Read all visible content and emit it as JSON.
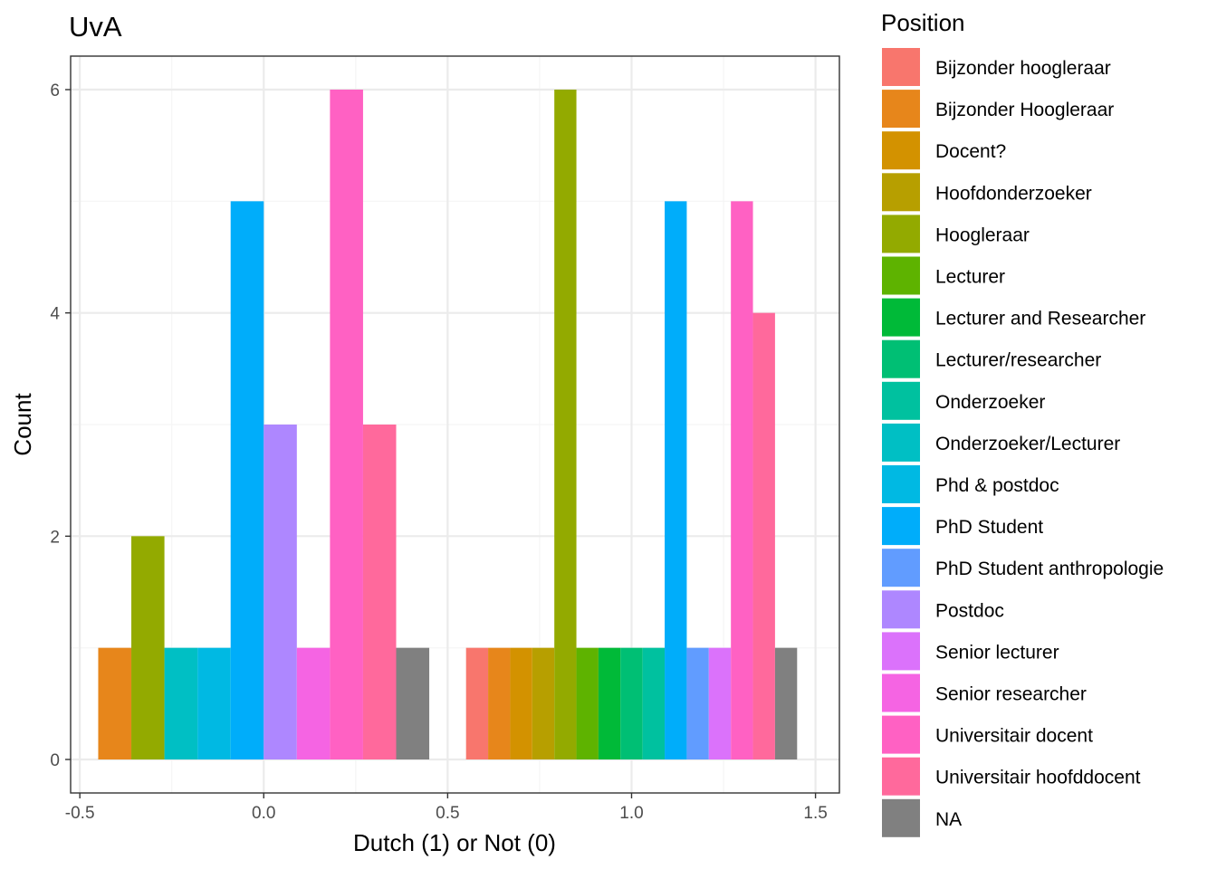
{
  "chart_data": {
    "type": "bar",
    "title": "UvA",
    "xlabel": "Dutch (1) or Not (0)",
    "ylabel": "Count",
    "xlim": [
      -0.525,
      1.565
    ],
    "ylim": [
      -0.3,
      6.3
    ],
    "x_ticks": [
      -0.5,
      0.0,
      0.5,
      1.0,
      1.5
    ],
    "x_tick_labels": [
      "-0.5",
      "0.0",
      "0.5",
      "1.0",
      "1.5"
    ],
    "y_ticks": [
      0,
      2,
      4,
      6
    ],
    "y_tick_labels": [
      "0",
      "2",
      "4",
      "6"
    ],
    "grid": true,
    "legend_position": "right",
    "legend_title": "Position",
    "series": [
      {
        "name": "Bijzonder hoogleraar",
        "color": "#F8766D",
        "values": [
          {
            "x": 0,
            "y": 0
          },
          {
            "x": 1,
            "y": 1
          }
        ]
      },
      {
        "name": "Bijzonder Hoogleraar",
        "color": "#E7861B",
        "values": [
          {
            "x": 0,
            "y": 1
          },
          {
            "x": 1,
            "y": 1
          }
        ]
      },
      {
        "name": "Docent?",
        "color": "#D39200",
        "values": [
          {
            "x": 0,
            "y": 0
          },
          {
            "x": 1,
            "y": 1
          }
        ]
      },
      {
        "name": "Hoofdonderzoeker",
        "color": "#B79F00",
        "values": [
          {
            "x": 0,
            "y": 0
          },
          {
            "x": 1,
            "y": 1
          }
        ]
      },
      {
        "name": "Hoogleraar",
        "color": "#93AA00",
        "values": [
          {
            "x": 0,
            "y": 2
          },
          {
            "x": 1,
            "y": 6
          }
        ]
      },
      {
        "name": "Lecturer",
        "color": "#5EB300",
        "values": [
          {
            "x": 0,
            "y": 0
          },
          {
            "x": 1,
            "y": 1
          }
        ]
      },
      {
        "name": "Lecturer and Researcher",
        "color": "#00BA38",
        "values": [
          {
            "x": 0,
            "y": 0
          },
          {
            "x": 1,
            "y": 1
          }
        ]
      },
      {
        "name": "Lecturer/researcher",
        "color": "#00BF74",
        "values": [
          {
            "x": 0,
            "y": 0
          },
          {
            "x": 1,
            "y": 1
          }
        ]
      },
      {
        "name": "Onderzoeker",
        "color": "#00C19F",
        "values": [
          {
            "x": 0,
            "y": 0
          },
          {
            "x": 1,
            "y": 1
          }
        ]
      },
      {
        "name": "Onderzoeker/Lecturer",
        "color": "#00BFC4",
        "values": [
          {
            "x": 0,
            "y": 1
          },
          {
            "x": 1,
            "y": 0
          }
        ]
      },
      {
        "name": "Phd & postdoc",
        "color": "#00B9E3",
        "values": [
          {
            "x": 0,
            "y": 1
          },
          {
            "x": 1,
            "y": 0
          }
        ]
      },
      {
        "name": "PhD Student",
        "color": "#00ADFA",
        "values": [
          {
            "x": 0,
            "y": 5
          },
          {
            "x": 1,
            "y": 5
          }
        ]
      },
      {
        "name": "PhD Student anthropologie",
        "color": "#619CFF",
        "values": [
          {
            "x": 0,
            "y": 0
          },
          {
            "x": 1,
            "y": 1
          }
        ]
      },
      {
        "name": "Postdoc",
        "color": "#AE87FF",
        "values": [
          {
            "x": 0,
            "y": 3
          },
          {
            "x": 1,
            "y": 0
          }
        ]
      },
      {
        "name": "Senior lecturer",
        "color": "#DB72FB",
        "values": [
          {
            "x": 0,
            "y": 0
          },
          {
            "x": 1,
            "y": 1
          }
        ]
      },
      {
        "name": "Senior researcher",
        "color": "#F564E3",
        "values": [
          {
            "x": 0,
            "y": 1
          },
          {
            "x": 1,
            "y": 0
          }
        ]
      },
      {
        "name": "Universitair docent",
        "color": "#FF61C3",
        "values": [
          {
            "x": 0,
            "y": 6
          },
          {
            "x": 1,
            "y": 5
          }
        ]
      },
      {
        "name": "Universitair hoofddocent",
        "color": "#FF699C",
        "values": [
          {
            "x": 0,
            "y": 3
          },
          {
            "x": 1,
            "y": 4
          }
        ]
      },
      {
        "name": "NA",
        "color": "#808080",
        "values": [
          {
            "x": 0,
            "y": 1
          },
          {
            "x": 1,
            "y": 1
          }
        ]
      }
    ],
    "style": {
      "panel_background": "#ffffff",
      "grid_major": "#ebebeb",
      "grid_minor": "#f5f5f5",
      "panel_border": "#333333",
      "bar_width": 0.9
    }
  }
}
